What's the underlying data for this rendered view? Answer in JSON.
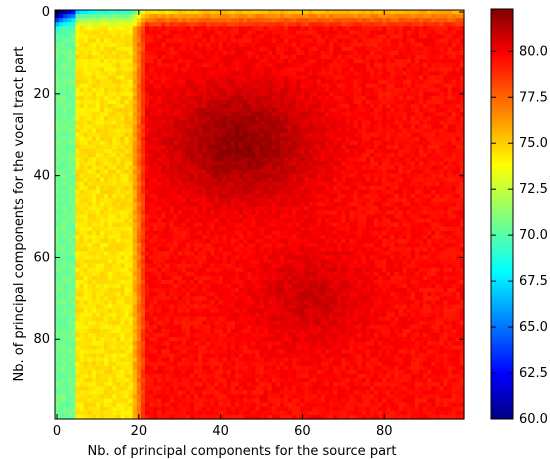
{
  "chart_data": {
    "type": "heatmap",
    "title": "",
    "xlabel": "Nb. of principal components for the source part",
    "ylabel": "Nb. of principal components for the vocal tract part",
    "xlim": [
      0,
      99
    ],
    "ylim": [
      99,
      0
    ],
    "x_ticks": [
      0,
      20,
      40,
      60,
      80
    ],
    "y_ticks": [
      0,
      20,
      40,
      60,
      80
    ],
    "colorbar": {
      "colormap": "jet",
      "vmin": 60.0,
      "vmax": 82.3,
      "ticks": [
        "60.0",
        "62.5",
        "65.0",
        "67.5",
        "70.0",
        "72.5",
        "75.0",
        "77.5",
        "80.0"
      ]
    },
    "value_description": "Accuracy surface: ~60 near (0,0), ~68-73 along first ~5 rows/columns, ~74-76 for x in 5-17, ~79-81 plateau elsewhere, peak ~82 around x=45, y=30"
  }
}
